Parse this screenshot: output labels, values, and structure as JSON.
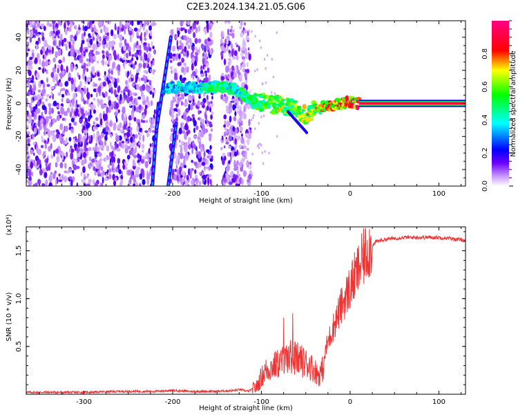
{
  "title": "C2E3.2024.134.21.05.G06",
  "chart_data": [
    {
      "type": "heatmap",
      "xlabel": "Height of straight line (km)",
      "ylabel": "Frequency (Hz)",
      "xlim": [
        -365,
        130
      ],
      "ylim": [
        -50,
        50
      ],
      "xticks": [
        -300,
        -200,
        -100,
        0,
        100
      ],
      "yticks": [
        -40,
        -20,
        0,
        20,
        40
      ],
      "colorbar": {
        "label": "Normalized spectral amplitude",
        "ticks": [
          0.0,
          0.2,
          0.4,
          0.6,
          0.8
        ],
        "range": [
          0,
          1
        ],
        "colors": [
          "#ffffff",
          "#c896ff",
          "#6a00ff",
          "#0000ff",
          "#00ffff",
          "#00ff00",
          "#ffff00",
          "#ff0000",
          "#ff0088"
        ]
      },
      "noise_region": [
        -365,
        -112
      ],
      "noise_gaps": [
        [
          -220,
          -203
        ],
        [
          -155,
          -145
        ]
      ],
      "streaks": [
        {
          "x": [
            -223,
            -216
          ],
          "y": [
            -50,
            0
          ]
        },
        {
          "x": [
            -218,
            -202
          ],
          "y": [
            -15,
            40
          ]
        },
        {
          "x": [
            -205,
            -196
          ],
          "y": [
            -50,
            -12
          ]
        }
      ],
      "ridge": {
        "x": [
          -210,
          -190,
          -170,
          -150,
          -130,
          -110,
          -95,
          -80,
          -65,
          -50,
          -40,
          -30,
          -20,
          -10,
          0,
          10,
          130
        ],
        "y": [
          9,
          10,
          9,
          10,
          9,
          1,
          0,
          -1,
          -3,
          -7,
          -4,
          -2,
          -1,
          0,
          1,
          0,
          0
        ],
        "amplitude": [
          0.45,
          0.45,
          0.5,
          0.6,
          0.55,
          0.6,
          0.65,
          0.75,
          0.7,
          0.8,
          0.8,
          0.85,
          0.9,
          0.95,
          0.95,
          1.0,
          1.0
        ]
      }
    },
    {
      "type": "line",
      "xlabel": "Height of straight line (km)",
      "ylabel": "SNR (10 * v/v)",
      "yscale_label": "(x10⁴)",
      "xlim": [
        -365,
        130
      ],
      "ylim": [
        0,
        1.75
      ],
      "xticks": [
        -300,
        -200,
        -100,
        0,
        100
      ],
      "yticks": [
        0.5,
        1.0,
        1.5
      ],
      "ytick_labels": [
        "0.5",
        "1.0",
        "1.5"
      ],
      "color": "#ee3333",
      "series": [
        {
          "x": [
            -365,
            -300,
            -260,
            -220,
            -200,
            -180,
            -150,
            -130,
            -125,
            -115,
            -105,
            -100,
            -95,
            -85,
            -75,
            -65,
            -55,
            -45,
            -40,
            -35,
            -30,
            -28,
            -25,
            -20,
            -15,
            -10,
            -5,
            0,
            5,
            10,
            15,
            20,
            25,
            30,
            40,
            50,
            60,
            80,
            100,
            120,
            130
          ],
          "y": [
            0.02,
            0.02,
            0.03,
            0.03,
            0.04,
            0.03,
            0.03,
            0.04,
            0.05,
            0.03,
            0.08,
            0.18,
            0.25,
            0.3,
            0.35,
            0.4,
            0.35,
            0.3,
            0.25,
            0.2,
            0.28,
            0.45,
            0.55,
            0.68,
            0.8,
            0.92,
            1.02,
            1.12,
            1.22,
            1.32,
            1.42,
            1.52,
            1.55,
            1.6,
            1.62,
            1.63,
            1.64,
            1.64,
            1.64,
            1.62,
            1.61
          ]
        }
      ]
    }
  ]
}
